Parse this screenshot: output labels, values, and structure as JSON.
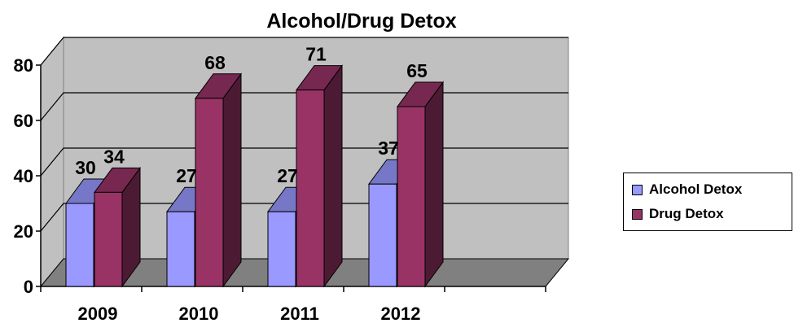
{
  "chart_data": {
    "type": "bar",
    "title": "Alcohol/Drug Detox",
    "categories": [
      "2009",
      "2010",
      "2011",
      "2012"
    ],
    "series": [
      {
        "name": "Alcohol Detox",
        "values": [
          30,
          27,
          27,
          37
        ],
        "color": "#9999FF"
      },
      {
        "name": "Drug Detox",
        "values": [
          34,
          68,
          71,
          65
        ],
        "color": "#993366"
      }
    ],
    "y_ticks": [
      "0",
      "20",
      "40",
      "60",
      "80"
    ],
    "ylim": [
      0,
      80
    ],
    "grid": true,
    "legend_position": "right",
    "xlabel": "",
    "ylabel": ""
  }
}
